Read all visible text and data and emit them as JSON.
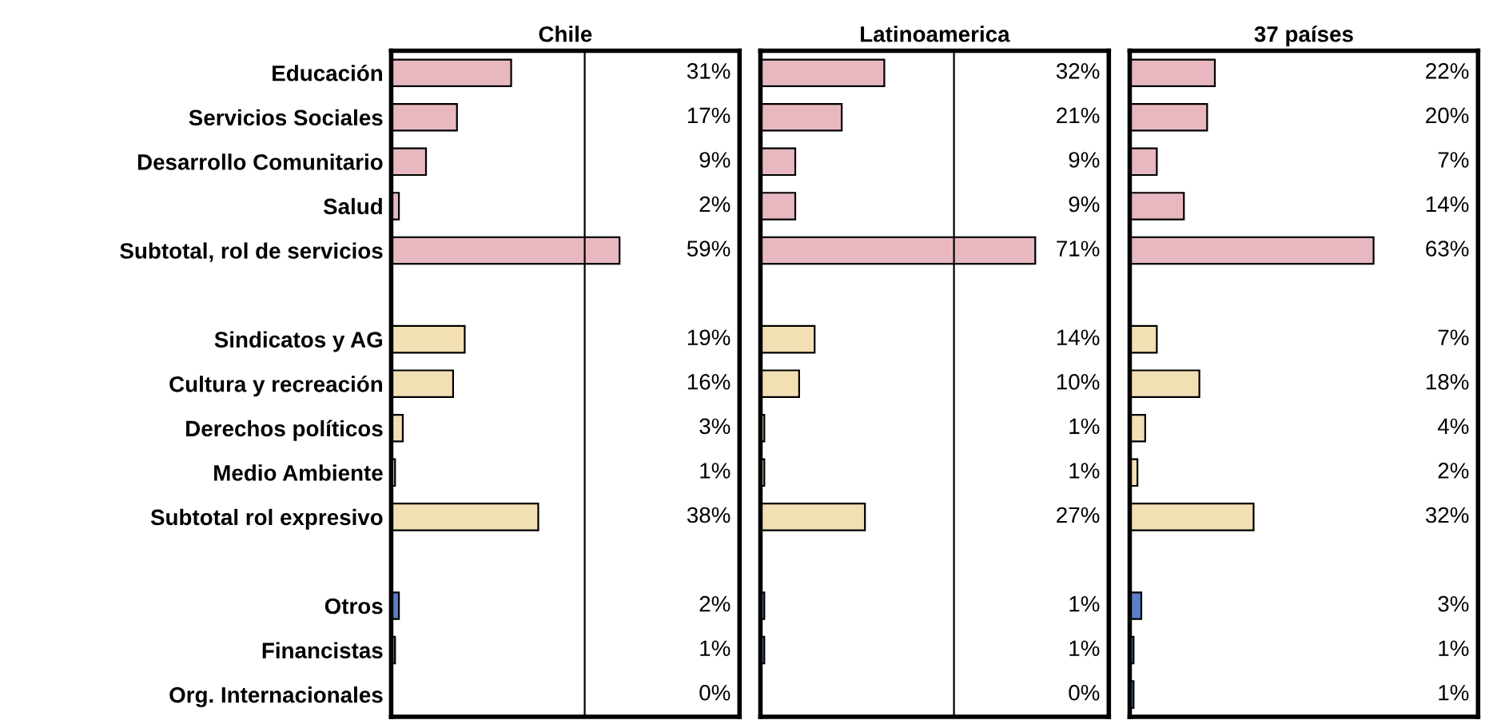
{
  "chart_data": [
    {
      "type": "bar",
      "orientation": "horizontal",
      "title": "Chile",
      "tick_labels": "y",
      "grid": false,
      "legend": false,
      "categories": [
        "Educación",
        "Servicios Sociales",
        "Desarrollo Comunitario",
        "Salud",
        "Subtotal, rol de servicios",
        null,
        "Sindicatos y AG",
        "Cultura y recreación",
        "Derechos políticos",
        "Medio Ambiente",
        "Subtotal rol expresivo",
        null,
        "Otros",
        "Financistas",
        "Org. Internacionales"
      ],
      "values": [
        31,
        17,
        9,
        2,
        59,
        null,
        19,
        16,
        3,
        1,
        38,
        null,
        2,
        1,
        0
      ],
      "value_labels": [
        "31%",
        "17%",
        "9%",
        "2%",
        "59%",
        null,
        "19%",
        "16%",
        "3%",
        "1%",
        "38%",
        null,
        "2%",
        "1%",
        "0%"
      ],
      "colors": [
        "#e8b8c0",
        "#e8b8c0",
        "#e8b8c0",
        "#e8b8c0",
        "#e8b8c0",
        null,
        "#f3dfb4",
        "#f3dfb4",
        "#f3dfb4",
        "#f3dfb4",
        "#f3dfb4",
        null,
        "#5a7fc8",
        "#5a7fc8",
        "#5a7fc8"
      ],
      "xlim": [
        0,
        90
      ],
      "ref_lines": [
        {
          "axis": "x",
          "value": 50,
          "color": "#000000"
        }
      ]
    },
    {
      "type": "bar",
      "orientation": "horizontal",
      "title": "Latinoamerica",
      "tick_labels": false,
      "grid": false,
      "legend": false,
      "categories": [
        null,
        null,
        null,
        null,
        null,
        null,
        null,
        null,
        null,
        null,
        null,
        null,
        null,
        null,
        null
      ],
      "values": [
        32,
        21,
        9,
        9,
        71,
        null,
        14,
        10,
        1,
        1,
        27,
        null,
        1,
        1,
        0
      ],
      "value_labels": [
        "32%",
        "21%",
        "9%",
        "9%",
        "71%",
        null,
        "14%",
        "10%",
        "1%",
        "1%",
        "27%",
        null,
        "1%",
        "1%",
        "0%"
      ],
      "colors": [
        "#e8b8c0",
        "#e8b8c0",
        "#e8b8c0",
        "#e8b8c0",
        "#e8b8c0",
        null,
        "#f3dfb4",
        "#f3dfb4",
        "#f3dfb4",
        "#f3dfb4",
        "#f3dfb4",
        null,
        "#5a7fc8",
        "#5a7fc8",
        "#5a7fc8"
      ],
      "xlim": [
        0,
        90
      ],
      "ref_lines": [
        {
          "axis": "x",
          "value": 50,
          "color": "#000000"
        }
      ]
    },
    {
      "type": "bar",
      "orientation": "horizontal",
      "title": "37 países",
      "tick_labels": false,
      "grid": false,
      "legend": false,
      "categories": [
        null,
        null,
        null,
        null,
        null,
        null,
        null,
        null,
        null,
        null,
        null,
        null,
        null,
        null,
        null
      ],
      "values": [
        22,
        20,
        7,
        14,
        63,
        null,
        7,
        18,
        4,
        2,
        32,
        null,
        3,
        1,
        1
      ],
      "value_labels": [
        "22%",
        "20%",
        "7%",
        "14%",
        "63%",
        null,
        "7%",
        "18%",
        "4%",
        "2%",
        "32%",
        null,
        "3%",
        "1%",
        "1%"
      ],
      "colors": [
        "#e8b8c0",
        "#e8b8c0",
        "#e8b8c0",
        "#e8b8c0",
        "#e8b8c0",
        null,
        "#f3dfb4",
        "#f3dfb4",
        "#f3dfb4",
        "#f3dfb4",
        "#f3dfb4",
        null,
        "#5a7fc8",
        "#5a7fc8",
        "#5a7fc8"
      ],
      "xlim": [
        0,
        90
      ]
    }
  ]
}
